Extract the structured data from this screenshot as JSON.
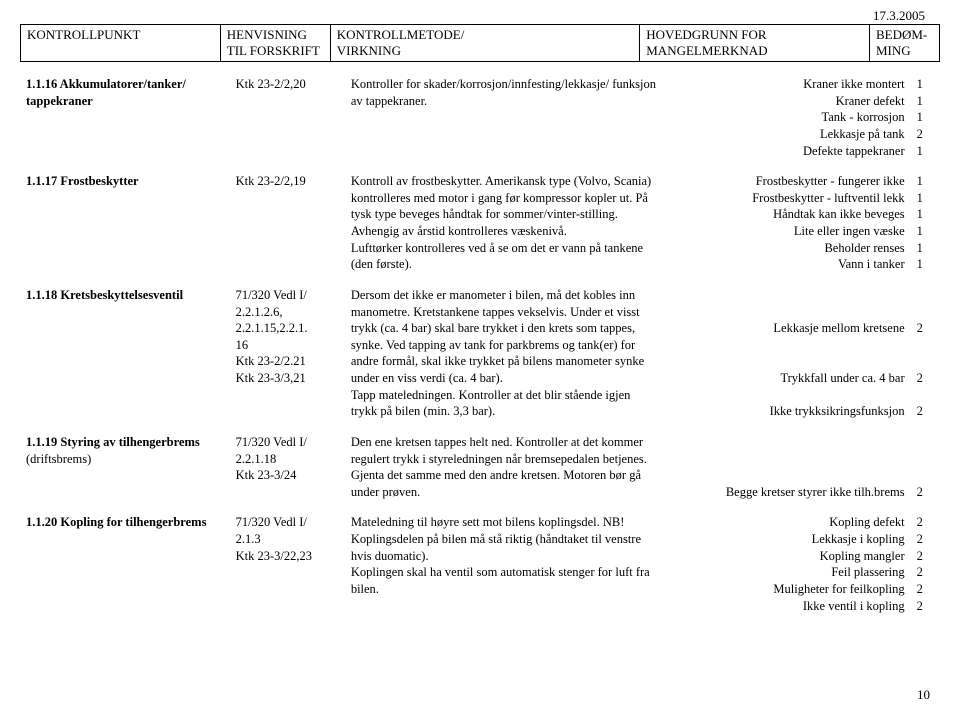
{
  "date": "17.3.2005",
  "headers": {
    "kp": "KONTROLLPUNKT",
    "hv1": "HENVISNING",
    "hv2": "TIL FORSKRIFT",
    "km1": "KONTROLLMETODE/",
    "km2": "VIRKNING",
    "hg1": "HOVEDGRUNN FOR",
    "hg2": "MANGELMERKNAD",
    "bm1": "BEDØM-",
    "bm2": "MING"
  },
  "rows": [
    {
      "c1b": "1.1.16 Akkumulatorer/tanker/",
      "c2": "Ktk 23-2/2,20",
      "c3": "Kontroller for skader/korrosjon/innfesting/lekkasje/ funksjon",
      "c4": "Kraner ikke montert",
      "c5": "1"
    },
    {
      "c1b": "tappekraner",
      "c3": "av tappekraner.",
      "c4": "Kraner defekt",
      "c5": "1"
    },
    {
      "c4": "Tank - korrosjon",
      "c5": "1"
    },
    {
      "c4": "Lekkasje på tank",
      "c5": "2"
    },
    {
      "c4": "Defekte tappekraner",
      "c5": "1"
    },
    {
      "spacer": true
    },
    {
      "c1b": "1.1.17 Frostbeskytter",
      "c2": "Ktk 23-2/2,19",
      "c3": "Kontroll av frostbeskytter. Amerikansk type (Volvo, Scania)",
      "c4": "Frostbeskytter - fungerer ikke",
      "c5": "1"
    },
    {
      "c3": "kontrolleres med motor i gang før kompressor kopler ut. På",
      "c4": "Frostbeskytter - luftventil lekk",
      "c5": "1"
    },
    {
      "c3": "tysk type beveges håndtak for sommer/vinter-stilling.",
      "c4": "Håndtak kan ikke beveges",
      "c5": "1"
    },
    {
      "c3": "Avhengig av årstid kontrolleres væskenivå.",
      "c4": "Lite eller ingen væske",
      "c5": "1"
    },
    {
      "c3": "Lufttørker kontrolleres ved å se om det er vann på tankene",
      "c4": "Beholder renses",
      "c5": "1"
    },
    {
      "c3": "(den første).",
      "c4": "Vann i tanker",
      "c5": "1"
    },
    {
      "spacer": true
    },
    {
      "c1b": "1.1.18 Kretsbeskyttelsesventil",
      "c2": "71/320 Vedl I/",
      "c3": "Dersom det ikke er manometer i bilen, må det kobles inn"
    },
    {
      "c2": "2.2.1.2.6,",
      "c3": "manometre. Kretstankene tappes vekselvis. Under et visst"
    },
    {
      "c2": "2.2.1.15,2.2.1.",
      "c3": "trykk (ca. 4 bar) skal bare trykket i den krets som tappes,",
      "c4": "Lekkasje mellom kretsene",
      "c5": "2"
    },
    {
      "c2": "16",
      "c3": "synke. Ved tapping av tank for parkbrems og tank(er) for"
    },
    {
      "c2": "Ktk 23-2/2.21",
      "c3": "andre formål, skal ikke trykket på bilens manometer synke"
    },
    {
      "c2": "Ktk 23-3/3,21",
      "c3": "under en viss verdi (ca. 4 bar).",
      "c4": "Trykkfall under ca. 4 bar",
      "c5": "2"
    },
    {
      "c3": "Tapp  mateledningen.  Kontroller at det blir stående igjen"
    },
    {
      "c3": "trykk på bilen (min. 3,3 bar).",
      "c4": "Ikke trykksikringsfunksjon",
      "c5": "2"
    },
    {
      "spacer": true
    },
    {
      "c1b": "1.1.19 Styring av tilhengerbrems",
      "c2": "71/320 Vedl I/",
      "c3": "Den ene kretsen tappes helt ned. Kontroller at det kommer"
    },
    {
      "c1": "(driftsbrems)",
      "c2": "2.2.1.18",
      "c3": "regulert trykk i styreledningen når bremsepedalen betjenes."
    },
    {
      "c2": "Ktk 23-3/24",
      "c3": "Gjenta det samme med den andre kretsen. Motoren bør gå"
    },
    {
      "c3": "under prøven.",
      "c4": "Begge kretser styrer ikke tilh.brems",
      "c5": "2"
    },
    {
      "spacer": true
    },
    {
      "c1b": "1.1.20 Kopling for tilhengerbrems",
      "c2": "71/320 Vedl I/",
      "c3": "Mateledning til høyre sett mot bilens koplingsdel. NB!",
      "c4": "Kopling defekt",
      "c5": "2"
    },
    {
      "c2": "2.1.3",
      "c3": "Koplingsdelen på bilen må stå riktig (håndtaket til venstre",
      "c4": "Lekkasje i kopling",
      "c5": "2"
    },
    {
      "c2": "Ktk 23-3/22,23",
      "c3": "hvis duomatic).",
      "c4": "Kopling mangler",
      "c5": "2"
    },
    {
      "c3": "Koplingen skal ha ventil som automatisk stenger for luft fra",
      "c4": "Feil plassering",
      "c5": "2"
    },
    {
      "c3": "bilen.",
      "c4": "Muligheter for feilkopling",
      "c5": "2"
    },
    {
      "c4": "Ikke ventil i kopling",
      "c5": "2"
    }
  ],
  "pageNumber": "10"
}
